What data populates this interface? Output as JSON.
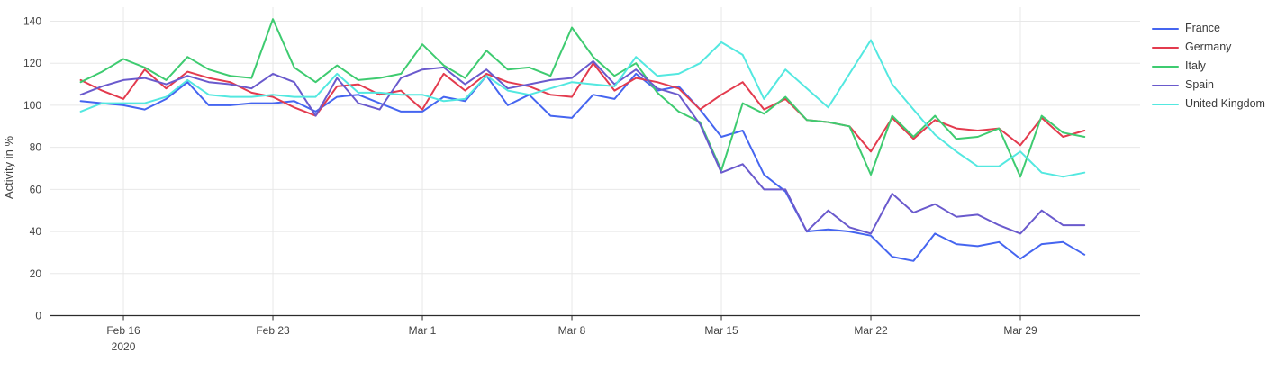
{
  "page": {
    "background": "#ffffff",
    "grid_color": "#e8e8e8",
    "axis_color": "#2b2b2b",
    "tick_label_color": "#444444"
  },
  "chart_data": {
    "type": "line",
    "title": "",
    "xlabel": "",
    "ylabel": "Activity in %",
    "ylim": [
      0,
      140
    ],
    "ytick_step": 20,
    "grid": true,
    "legend_position": "top-right-outside",
    "x": [
      "Feb 14",
      "Feb 15",
      "Feb 16",
      "Feb 17",
      "Feb 18",
      "Feb 19",
      "Feb 20",
      "Feb 21",
      "Feb 22",
      "Feb 23",
      "Feb 24",
      "Feb 25",
      "Feb 26",
      "Feb 27",
      "Feb 28",
      "Feb 29",
      "Mar 1",
      "Mar 2",
      "Mar 3",
      "Mar 4",
      "Mar 5",
      "Mar 6",
      "Mar 7",
      "Mar 8",
      "Mar 9",
      "Mar 10",
      "Mar 11",
      "Mar 12",
      "Mar 13",
      "Mar 14",
      "Mar 15",
      "Mar 16",
      "Mar 17",
      "Mar 18",
      "Mar 19",
      "Mar 20",
      "Mar 21",
      "Mar 22",
      "Mar 23",
      "Mar 24",
      "Mar 25",
      "Mar 26",
      "Mar 27",
      "Mar 28",
      "Mar 29",
      "Mar 30",
      "Mar 31",
      "Apr 1"
    ],
    "xticks": [
      {
        "label": "Feb 16",
        "sublabel": "2020",
        "index": 2
      },
      {
        "label": "Feb 23",
        "sublabel": "",
        "index": 9
      },
      {
        "label": "Mar 1",
        "sublabel": "",
        "index": 16
      },
      {
        "label": "Mar 8",
        "sublabel": "",
        "index": 23
      },
      {
        "label": "Mar 15",
        "sublabel": "",
        "index": 30
      },
      {
        "label": "Mar 22",
        "sublabel": "",
        "index": 37
      },
      {
        "label": "Mar 29",
        "sublabel": "",
        "index": 44
      }
    ],
    "series": [
      {
        "name": "France",
        "color": "#4565f0",
        "values": [
          102,
          101,
          100,
          98,
          103,
          111,
          100,
          100,
          101,
          101,
          102,
          97,
          104,
          105,
          101,
          97,
          97,
          104,
          102,
          114,
          100,
          105,
          95,
          94,
          105,
          103,
          115,
          107,
          109,
          98,
          85,
          88,
          67,
          59,
          40,
          41,
          40,
          38,
          28,
          26,
          39,
          34,
          33,
          35,
          27,
          34,
          35,
          29
        ]
      },
      {
        "name": "Germany",
        "color": "#e33b4e",
        "values": [
          112,
          107,
          103,
          117,
          108,
          116,
          113,
          111,
          106,
          104,
          99,
          95,
          109,
          110,
          105,
          107,
          98,
          115,
          107,
          115,
          111,
          109,
          105,
          104,
          120,
          107,
          113,
          111,
          108,
          98,
          105,
          111,
          98,
          103,
          93,
          92,
          90,
          78,
          94,
          84,
          93,
          89,
          88,
          89,
          81,
          94,
          85,
          88
        ]
      },
      {
        "name": "Italy",
        "color": "#3ecb70",
        "values": [
          111,
          116,
          122,
          118,
          112,
          123,
          117,
          114,
          113,
          141,
          118,
          111,
          119,
          112,
          113,
          115,
          129,
          119,
          113,
          126,
          117,
          118,
          114,
          137,
          123,
          114,
          120,
          106,
          97,
          92,
          69,
          101,
          96,
          104,
          93,
          92,
          90,
          67,
          95,
          85,
          95,
          84,
          85,
          89,
          66,
          95,
          87,
          85
        ]
      },
      {
        "name": "Spain",
        "color": "#6a5acd",
        "values": [
          105,
          109,
          112,
          113,
          110,
          114,
          111,
          110,
          108,
          115,
          111,
          95,
          113,
          101,
          98,
          113,
          117,
          118,
          110,
          117,
          108,
          110,
          112,
          113,
          121,
          110,
          117,
          108,
          105,
          91,
          68,
          72,
          60,
          60,
          40,
          50,
          42,
          39,
          58,
          49,
          53,
          47,
          48,
          43,
          39,
          50,
          43,
          43
        ]
      },
      {
        "name": "United Kingdom",
        "color": "#53e8e0",
        "values": [
          97,
          101,
          101,
          101,
          104,
          112,
          105,
          104,
          104,
          105,
          104,
          104,
          115,
          106,
          106,
          105,
          105,
          102,
          103,
          114,
          107,
          105,
          108,
          111,
          110,
          109,
          123,
          114,
          115,
          120,
          130,
          124,
          103,
          117,
          108,
          99,
          115,
          131,
          110,
          98,
          86,
          78,
          71,
          71,
          78,
          68,
          66,
          68
        ]
      }
    ]
  }
}
